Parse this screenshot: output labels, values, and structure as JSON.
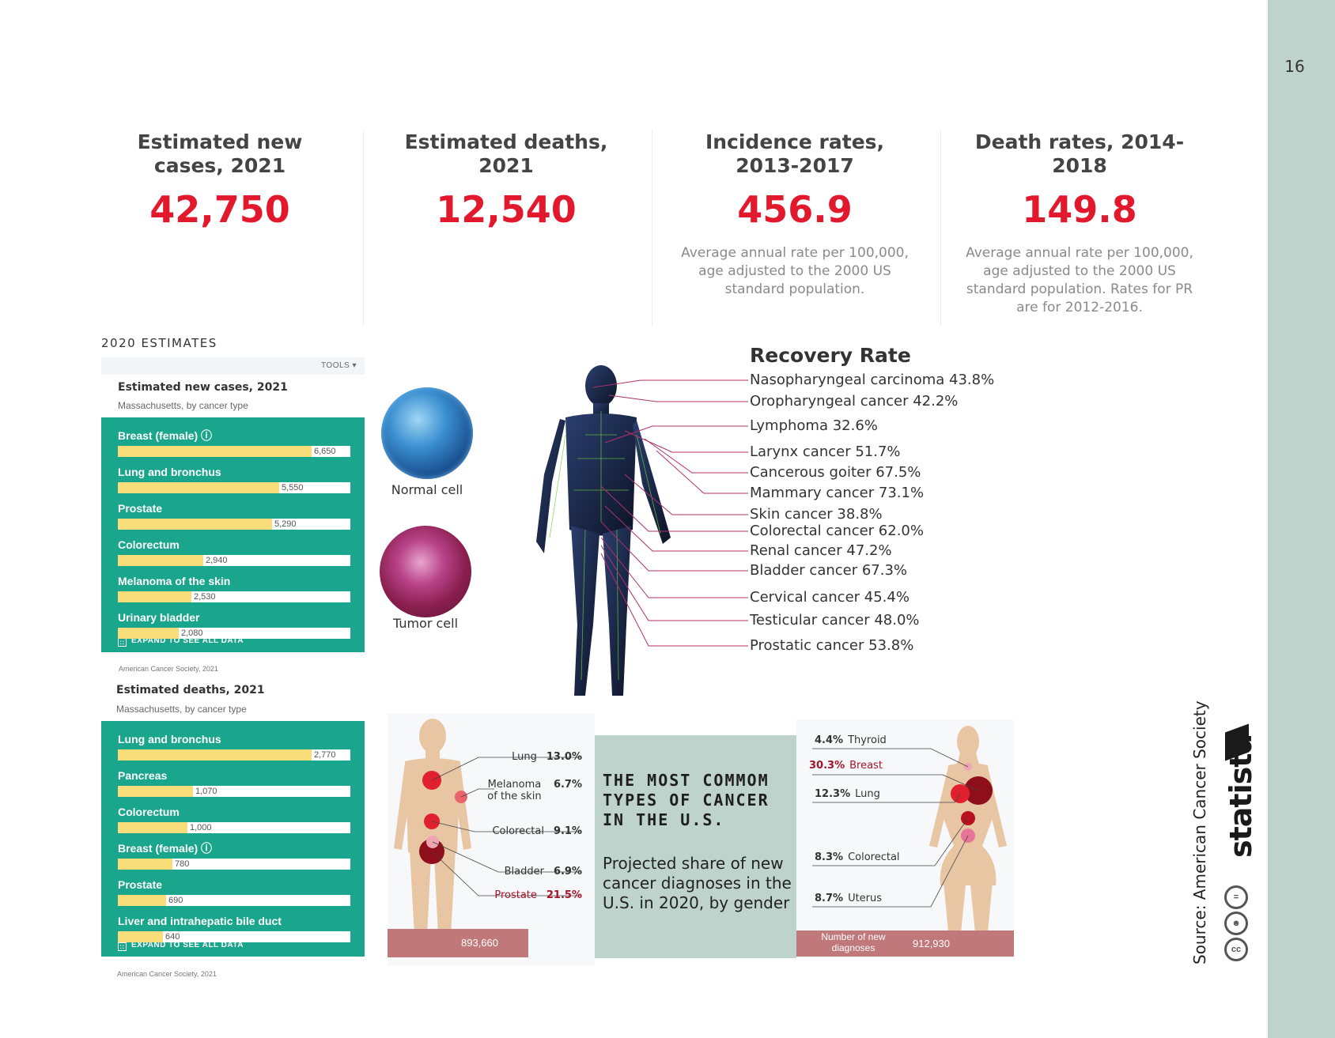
{
  "page_number": "16",
  "stats": [
    {
      "title": "Estimated new cases, 2021",
      "value": "42,750",
      "note": ""
    },
    {
      "title": "Estimated deaths, 2021",
      "value": "12,540",
      "note": ""
    },
    {
      "title": "Incidence rates, 2013-2017",
      "value": "456.9",
      "note": "Average annual rate per 100,000, age adjusted to the 2000 US standard population."
    },
    {
      "title": "Death rates, 2014-2018",
      "value": "149.8",
      "note": "Average annual rate per 100,000, age adjusted to the 2000 US standard population. Rates for PR are for 2012-2016."
    }
  ],
  "estimates_heading": "2020 ESTIMATES",
  "tools_label": "TOOLS ▾",
  "new_cases_panel": {
    "title": "Estimated new cases, 2021",
    "subtitle": "Massachusetts, by cancer type",
    "expand_label": "EXPAND TO SEE ALL DATA",
    "source": "American Cancer Society, 2021",
    "max": 6650,
    "rows": [
      {
        "label": "Breast (female) ⓘ",
        "value": 6650,
        "display": "6,650"
      },
      {
        "label": "Lung and bronchus",
        "value": 5550,
        "display": "5,550"
      },
      {
        "label": "Prostate",
        "value": 5290,
        "display": "5,290"
      },
      {
        "label": "Colorectum",
        "value": 2940,
        "display": "2,940"
      },
      {
        "label": "Melanoma of the skin",
        "value": 2530,
        "display": "2,530"
      },
      {
        "label": "Urinary bladder",
        "value": 2080,
        "display": "2,080"
      }
    ]
  },
  "deaths_panel": {
    "title": "Estimated deaths, 2021",
    "subtitle": "Massachusetts, by cancer type",
    "expand_label": "EXPAND TO SEE ALL DATA",
    "source": "American Cancer Society, 2021",
    "max": 2770,
    "rows": [
      {
        "label": "Lung and bronchus",
        "value": 2770,
        "display": "2,770"
      },
      {
        "label": "Pancreas",
        "value": 1070,
        "display": "1,070"
      },
      {
        "label": "Colorectum",
        "value": 1000,
        "display": "1,000"
      },
      {
        "label": "Breast (female) ⓘ",
        "value": 780,
        "display": "780"
      },
      {
        "label": "Prostate",
        "value": 690,
        "display": "690"
      },
      {
        "label": "Liver and intrahepatic bile duct",
        "value": 640,
        "display": "640"
      }
    ]
  },
  "cells": {
    "normal": "Normal cell",
    "tumor": "Tumor cell"
  },
  "recovery": {
    "title": "Recovery Rate",
    "items": [
      "Nasopharyngeal carcinoma  43.8%",
      "Oropharyngeal cancer 42.2%",
      "Lymphoma  32.6%",
      "Larynx cancer  51.7%",
      "Cancerous goiter  67.5%",
      "Mammary cancer  73.1%",
      "Skin cancer 38.8%",
      "Colorectal cancer  62.0%",
      "Renal cancer  47.2%",
      "Bladder cancer  67.3%",
      "Cervical cancer  45.4%",
      "Testicular cancer  48.0%",
      "Prostatic cancer  53.8%"
    ]
  },
  "infographic": {
    "title": "THE MOST COMMOM TYPES OF CANCER IN THE U.S.",
    "subtitle": "Projected share of new cancer diagnoses in the U.S. in 2020, by gender",
    "male": [
      {
        "name": "Lung",
        "pct": "13.0%"
      },
      {
        "name": "Melanoma of the skin",
        "pct": "6.7%"
      },
      {
        "name": "Colorectal",
        "pct": "9.1%"
      },
      {
        "name": "Bladder",
        "pct": "6.9%"
      },
      {
        "name": "Prostate",
        "pct": "21.5%"
      }
    ],
    "male_total": "893,660",
    "female": [
      {
        "pct": "4.4%",
        "name": "Thyroid"
      },
      {
        "pct": "30.3%",
        "name": "Breast"
      },
      {
        "pct": "12.3%",
        "name": "Lung"
      },
      {
        "pct": "8.3%",
        "name": "Colorectal"
      },
      {
        "pct": "8.7%",
        "name": "Uterus"
      }
    ],
    "female_total_label": "Number of new diagnoses",
    "female_total": "912,930"
  },
  "source": "Source: American Cancer Society",
  "brand": "statista",
  "colors": {
    "accent_red": "#e2182d",
    "panel_green": "#1aa68c",
    "bar_yellow": "#f9dd7b",
    "sage": "#bdd3cb"
  }
}
